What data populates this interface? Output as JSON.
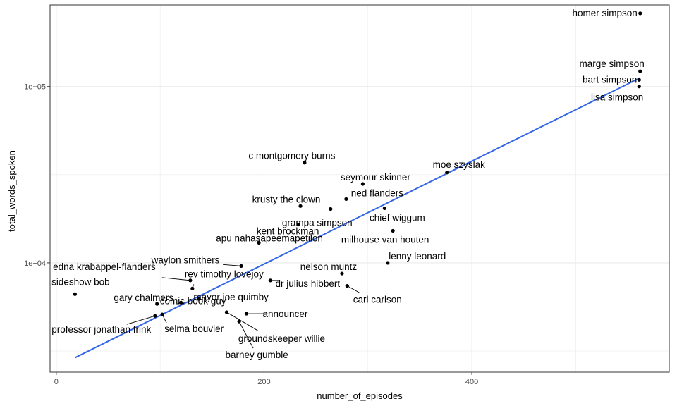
{
  "chart_data": {
    "type": "scatter",
    "xlabel": "number_of_episodes",
    "ylabel": "total_words_spoken",
    "xlim": [
      -6,
      590
    ],
    "ylim": [
      2400,
      290000
    ],
    "yscale": "log",
    "x_ticks": [
      0,
      200,
      400
    ],
    "x_tick_labels": [
      "0",
      "200",
      "400"
    ],
    "y_ticks": [
      10000,
      100000
    ],
    "y_tick_labels": [
      "1e+04",
      "1e+05"
    ],
    "grid": true,
    "legend": "none",
    "colors": {
      "points": "#000000",
      "trend": "#3366e6",
      "grid": "#ebebeb",
      "border": "#333333"
    },
    "trend_line": {
      "method": "log-linear fit",
      "x": [
        18,
        562
      ],
      "y": [
        2900,
        112000
      ]
    },
    "points": [
      {
        "label": "homer simpson",
        "x": 562,
        "y": 260000
      },
      {
        "label": "marge simpson",
        "x": 562,
        "y": 122000
      },
      {
        "label": "bart simpson",
        "x": 561,
        "y": 109000
      },
      {
        "label": "lisa simpson",
        "x": 561,
        "y": 100000
      },
      {
        "label": "moe szyslak",
        "x": 376,
        "y": 32500
      },
      {
        "label": "c montgomery burns",
        "x": 239,
        "y": 37000
      },
      {
        "label": "seymour skinner",
        "x": 295,
        "y": 28000
      },
      {
        "label": "ned flanders",
        "x": 279,
        "y": 23000
      },
      {
        "label": "krusty the clown",
        "x": 235,
        "y": 21000
      },
      {
        "label": "grampa simpson",
        "x": 264,
        "y": 20200
      },
      {
        "label": "chief wiggum",
        "x": 316,
        "y": 20400
      },
      {
        "label": "kent brockman",
        "x": 233,
        "y": 16500
      },
      {
        "label": "milhouse van houten",
        "x": 324,
        "y": 15200
      },
      {
        "label": "apu nahasapeemapetilon",
        "x": 195,
        "y": 13000
      },
      {
        "label": "lenny leonard",
        "x": 319,
        "y": 10000
      },
      {
        "label": "waylon smithers",
        "x": 178,
        "y": 9600
      },
      {
        "label": "nelson muntz",
        "x": 275,
        "y": 8700
      },
      {
        "label": "edna krabappel-flanders",
        "x": 129,
        "y": 7950
      },
      {
        "label": "rev timothy lovejoy",
        "x": 131,
        "y": 7150
      },
      {
        "label": "dr julius hibbert",
        "x": 206,
        "y": 7950
      },
      {
        "label": "carl carlson",
        "x": 280,
        "y": 7400
      },
      {
        "label": "sideshow bob",
        "x": 18,
        "y": 6650
      },
      {
        "label": "gary chalmers",
        "x": 97,
        "y": 5850
      },
      {
        "label": "mayor joe quimby",
        "x": 137,
        "y": 6250
      },
      {
        "label": "comic book guy",
        "x": 120,
        "y": 5950
      },
      {
        "label": "announcer",
        "x": 183,
        "y": 5150
      },
      {
        "label": "professor jonathan frink",
        "x": 95,
        "y": 5000
      },
      {
        "label": "selma bouvier",
        "x": 102,
        "y": 5100
      },
      {
        "label": "groundskeeper willie",
        "x": 164,
        "y": 5250
      },
      {
        "label": "barney gumble",
        "x": 176,
        "y": 4650
      }
    ]
  }
}
